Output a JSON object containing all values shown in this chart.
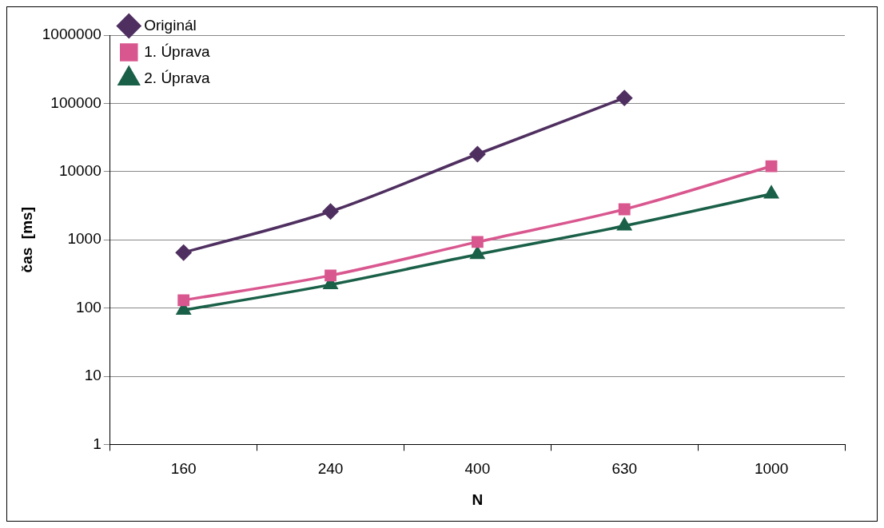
{
  "chart_data": {
    "type": "line",
    "xlabel": "N",
    "ylabel": "čas  [ms]",
    "categories": [
      "160",
      "240",
      "400",
      "630",
      "1000"
    ],
    "series": [
      {
        "name": "Originál",
        "color": "#4f2f60",
        "marker": "diamond",
        "values": [
          650,
          2600,
          18000,
          120000,
          null
        ]
      },
      {
        "name": "1. Úprava",
        "color": "#d9578f",
        "marker": "square",
        "values": [
          130,
          300,
          930,
          2800,
          12000
        ]
      },
      {
        "name": "2. Úprava",
        "color": "#1a6048",
        "marker": "triangle",
        "values": [
          93,
          220,
          610,
          1600,
          4700
        ]
      }
    ],
    "log": "y",
    "ylim": [
      1,
      1000000
    ],
    "yticks": [
      1,
      10,
      100,
      1000,
      10000,
      100000,
      1000000
    ],
    "grid": "y",
    "legend": "top left",
    "line_style": "solid"
  }
}
